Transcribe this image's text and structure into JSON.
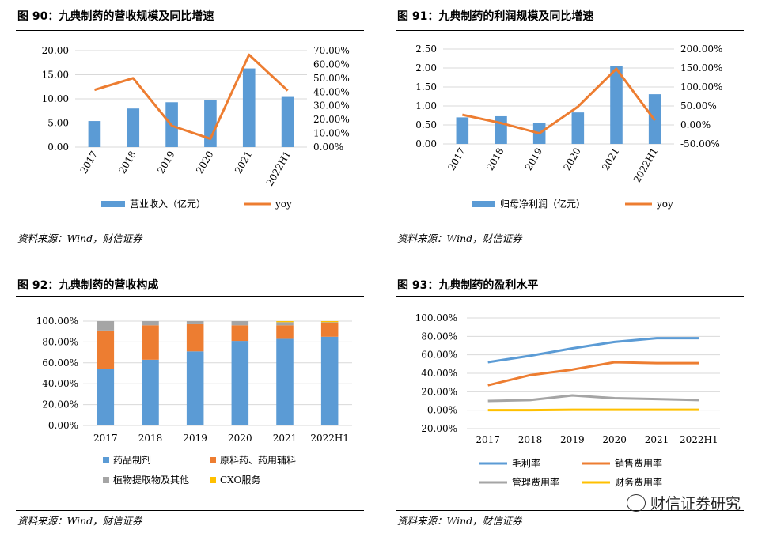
{
  "panels": [
    {
      "title": "图 90：九典制药的营收规模及同比增速",
      "source": "资料来源：Wind，财信证券"
    },
    {
      "title": "图 91：九典制药的利润规模及同比增速",
      "source": "资料来源：Wind，财信证券"
    },
    {
      "title": "图 92：九典制药的营收构成",
      "source": "资料来源：Wind，财信证券"
    },
    {
      "title": "图 93：九典制药的盈利水平",
      "source": "资料来源：Wind，财信证券"
    }
  ],
  "watermark": "财信证券研究",
  "chart_data": [
    {
      "type": "bar+line",
      "categories": [
        "2017",
        "2018",
        "2019",
        "2020",
        "2021",
        "2022H1"
      ],
      "series": [
        {
          "name": "营业收入（亿元）",
          "type": "bar",
          "axis": "left",
          "values": [
            5.4,
            8.0,
            9.3,
            9.8,
            16.3,
            10.4
          ],
          "color": "#5B9BD5"
        },
        {
          "name": "yoy",
          "type": "line",
          "axis": "right",
          "values": [
            41.5,
            50.0,
            15.5,
            6.0,
            67.0,
            41.0
          ],
          "color": "#ED7D31"
        }
      ],
      "y_left": {
        "min": 0,
        "max": 20,
        "ticks": [
          "0.00",
          "5.00",
          "10.00",
          "15.00",
          "20.00"
        ]
      },
      "y_right": {
        "min": 0,
        "max": 70,
        "ticks": [
          "0.00%",
          "10.00%",
          "20.00%",
          "30.00%",
          "40.00%",
          "50.00%",
          "60.00%",
          "70.00%"
        ]
      },
      "grid": true,
      "legend": "bottom"
    },
    {
      "type": "bar+line",
      "categories": [
        "2017",
        "2018",
        "2019",
        "2020",
        "2021",
        "2022H1"
      ],
      "series": [
        {
          "name": "归母净利润（亿元）",
          "type": "bar",
          "axis": "left",
          "values": [
            0.7,
            0.73,
            0.56,
            0.83,
            2.05,
            1.31
          ],
          "color": "#5B9BD5"
        },
        {
          "name": "yoy",
          "type": "line",
          "axis": "right",
          "values": [
            27,
            5,
            -22,
            48,
            148,
            12
          ],
          "color": "#ED7D31"
        }
      ],
      "y_left": {
        "min": 0,
        "max": 2.5,
        "ticks": [
          "0.00",
          "0.50",
          "1.00",
          "1.50",
          "2.00",
          "2.50"
        ]
      },
      "y_right": {
        "min": -50,
        "max": 200,
        "ticks": [
          "-50.00%",
          "0.00%",
          "50.00%",
          "100.00%",
          "150.00%",
          "200.00%"
        ]
      },
      "grid": true,
      "legend": "bottom"
    },
    {
      "type": "stacked-bar",
      "categories": [
        "2017",
        "2018",
        "2019",
        "2020",
        "2021",
        "2022H1"
      ],
      "series": [
        {
          "name": "药品制剂",
          "values": [
            54,
            63,
            71,
            81,
            83,
            85
          ],
          "color": "#5B9BD5"
        },
        {
          "name": "原料药、药用辅料",
          "values": [
            37,
            33,
            26,
            15,
            13,
            13
          ],
          "color": "#ED7D31"
        },
        {
          "name": "植物提取物及其他",
          "values": [
            9,
            4,
            3,
            4,
            3,
            1
          ],
          "color": "#A5A5A5"
        },
        {
          "name": "CXO服务",
          "values": [
            0,
            0,
            0,
            0,
            1,
            1
          ],
          "color": "#FFC000"
        }
      ],
      "y": {
        "min": 0,
        "max": 100,
        "ticks": [
          "0.00%",
          "20.00%",
          "40.00%",
          "60.00%",
          "80.00%",
          "100.00%"
        ]
      },
      "grid": true,
      "legend": "bottom"
    },
    {
      "type": "line",
      "categories": [
        "2017",
        "2018",
        "2019",
        "2020",
        "2021",
        "2022H1"
      ],
      "series": [
        {
          "name": "毛利率",
          "values": [
            52,
            59,
            67,
            74,
            78,
            78
          ],
          "color": "#5B9BD5"
        },
        {
          "name": "销售费用率",
          "values": [
            27,
            38,
            44,
            52,
            51,
            51
          ],
          "color": "#ED7D31"
        },
        {
          "name": "管理费用率",
          "values": [
            10,
            11,
            16,
            13,
            12,
            11
          ],
          "color": "#A5A5A5"
        },
        {
          "name": "财务费用率",
          "values": [
            0,
            0,
            0.5,
            0.5,
            0.5,
            0.5
          ],
          "color": "#FFC000"
        }
      ],
      "y": {
        "min": -20,
        "max": 100,
        "ticks": [
          "-20.00%",
          "0.00%",
          "20.00%",
          "40.00%",
          "60.00%",
          "80.00%",
          "100.00%"
        ]
      },
      "grid": true,
      "legend": "bottom"
    }
  ]
}
